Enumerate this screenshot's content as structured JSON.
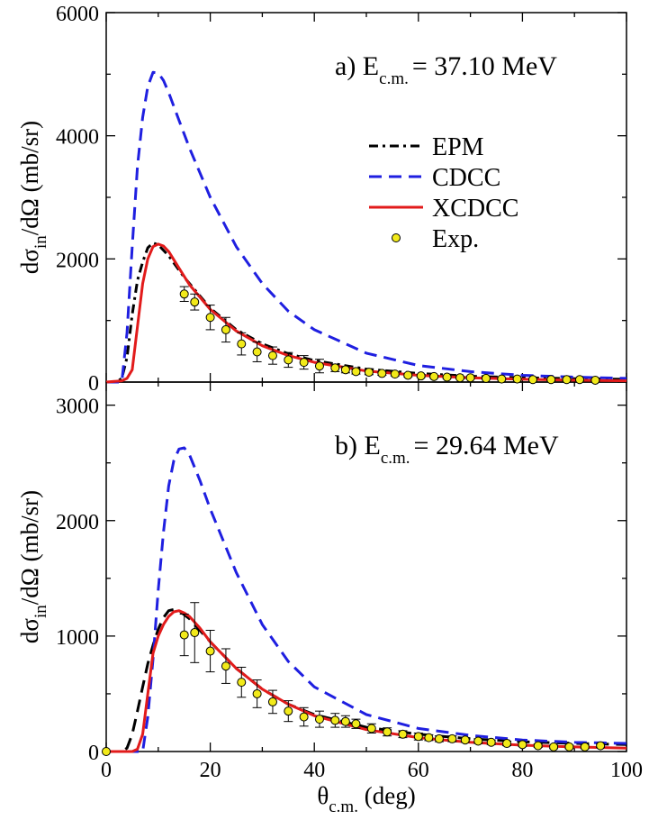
{
  "chart_data": [
    {
      "type": "line",
      "panel_label": "a) E",
      "energy_sub": "c.m.",
      "energy_value": "= 37.10 MeV",
      "ylabel_parts": [
        "dσ",
        "in",
        "/dΩ (mb/sr)"
      ],
      "xlim": [
        0,
        100
      ],
      "ylim": [
        0,
        6000
      ],
      "x_ticks": [
        0,
        20,
        40,
        60,
        80,
        100
      ],
      "y_ticks": [
        "0",
        "2000",
        "4000",
        "6000"
      ],
      "legend": {
        "placement": "center-right",
        "entries": [
          "EPM",
          "CDCC",
          "XCDCC",
          "Exp."
        ]
      },
      "series": [
        {
          "name": "EPM",
          "style": "dash-dot",
          "color": "#000000",
          "x": [
            0,
            2,
            3,
            4,
            5,
            6,
            7,
            8,
            9,
            10,
            12,
            15,
            20,
            25,
            30,
            35,
            40,
            50,
            60,
            70,
            80,
            90,
            100
          ],
          "y": [
            0,
            0,
            60,
            400,
            1100,
            1650,
            1950,
            2180,
            2260,
            2230,
            2050,
            1700,
            1200,
            850,
            620,
            460,
            350,
            210,
            140,
            95,
            70,
            55,
            45
          ]
        },
        {
          "name": "CDCC",
          "style": "dashed",
          "color": "#1f1fe0",
          "x": [
            0,
            3,
            4,
            5,
            6,
            7,
            8,
            9,
            10,
            11,
            12,
            14,
            16,
            20,
            25,
            30,
            35,
            40,
            50,
            60,
            70,
            80,
            90,
            100
          ],
          "y": [
            0,
            0,
            800,
            2200,
            3500,
            4300,
            4800,
            5030,
            5020,
            4900,
            4700,
            4250,
            3800,
            3000,
            2200,
            1600,
            1150,
            850,
            470,
            270,
            170,
            110,
            80,
            60
          ]
        },
        {
          "name": "XCDCC",
          "style": "solid",
          "color": "#e21b1b",
          "x": [
            0,
            3,
            4,
            5,
            6,
            7,
            8,
            9,
            10,
            11,
            12,
            14,
            16,
            20,
            25,
            30,
            35,
            40,
            50,
            60,
            70,
            80,
            90,
            100
          ],
          "y": [
            0,
            20,
            60,
            200,
            900,
            1600,
            2000,
            2200,
            2240,
            2210,
            2120,
            1850,
            1580,
            1180,
            830,
            590,
            430,
            320,
            180,
            110,
            70,
            45,
            30,
            20
          ]
        }
      ],
      "experimental": {
        "name": "Exp.",
        "color": "#f2ea1a",
        "x": [
          15.0,
          17.0,
          20.0,
          23.0,
          26.0,
          29.0,
          32.0,
          35.0,
          38.0,
          41.0,
          44.0,
          46.0,
          48.0,
          50.5,
          53.0,
          55.5,
          58.0,
          60.5,
          63.0,
          65.5,
          68.0,
          70.0,
          73.0,
          76.0,
          79.0,
          82.0,
          85.5,
          88.5,
          91.0,
          94.0
        ],
        "y": [
          1430,
          1300,
          1050,
          850,
          620,
          490,
          430,
          360,
          320,
          260,
          230,
          200,
          170,
          160,
          140,
          130,
          110,
          100,
          90,
          80,
          70,
          70,
          60,
          50,
          50,
          40,
          40,
          40,
          40,
          30
        ],
        "err": [
          120,
          130,
          200,
          200,
          180,
          160,
          140,
          120,
          110,
          110,
          60,
          50,
          40,
          40,
          30,
          30,
          25,
          25,
          20,
          20,
          20,
          20,
          15,
          15,
          15,
          15,
          15,
          15,
          15,
          15
        ]
      }
    },
    {
      "type": "line",
      "panel_label": "b) E",
      "energy_sub": "c.m.",
      "energy_value": "= 29.64 MeV",
      "ylabel_parts": [
        "dσ",
        "in",
        "/dΩ (mb/sr)"
      ],
      "xlabel_parts": [
        "θ",
        "c.m.",
        " (deg)"
      ],
      "xlim": [
        0,
        100
      ],
      "ylim": [
        0,
        3200
      ],
      "x_ticks": [
        0,
        20,
        40,
        60,
        80,
        100
      ],
      "x_tick_labels": [
        "0",
        "20",
        "40",
        "60",
        "80",
        "100"
      ],
      "y_ticks": [
        "0",
        "1000",
        "2000",
        "3000"
      ],
      "series": [
        {
          "name": "EPM",
          "style": "dashed",
          "color": "#000000",
          "x": [
            0,
            3,
            4,
            5,
            6,
            7,
            8,
            9,
            10,
            11,
            12,
            13,
            14,
            16,
            20,
            25,
            30,
            35,
            40,
            50,
            60,
            70,
            80,
            90,
            100
          ],
          "y": [
            0,
            0,
            30,
            150,
            350,
            560,
            760,
            920,
            1060,
            1160,
            1220,
            1230,
            1220,
            1150,
            950,
            720,
            540,
            410,
            320,
            210,
            150,
            110,
            85,
            70,
            60
          ]
        },
        {
          "name": "CDCC",
          "style": "dashed",
          "color": "#1f1fe0",
          "x": [
            0,
            7,
            8,
            9,
            10,
            11,
            12,
            13,
            14,
            15,
            16,
            18,
            20,
            25,
            30,
            35,
            40,
            50,
            60,
            70,
            80,
            90,
            100
          ],
          "y": [
            0,
            0,
            300,
            800,
            1400,
            1900,
            2300,
            2520,
            2620,
            2630,
            2570,
            2350,
            2100,
            1550,
            1100,
            780,
            560,
            320,
            200,
            140,
            100,
            80,
            70
          ]
        },
        {
          "name": "XCDCC",
          "style": "solid",
          "color": "#e21b1b",
          "x": [
            0,
            5,
            6,
            7,
            8,
            9,
            10,
            11,
            12,
            13,
            14,
            15,
            16,
            18,
            20,
            25,
            30,
            35,
            40,
            50,
            60,
            70,
            80,
            90,
            100
          ],
          "y": [
            0,
            0,
            20,
            150,
            500,
            850,
            1000,
            1100,
            1170,
            1210,
            1220,
            1200,
            1170,
            1070,
            950,
            720,
            540,
            410,
            310,
            190,
            120,
            80,
            55,
            40,
            30
          ]
        }
      ],
      "experimental": {
        "name": "Exp.",
        "color": "#f2ea1a",
        "x": [
          0.0,
          15.0,
          17.0,
          20.0,
          23.0,
          26.0,
          29.0,
          32.0,
          35.0,
          38.0,
          41.0,
          44.0,
          46.0,
          48.0,
          51.0,
          54.0,
          57.0,
          60.0,
          62.0,
          64.0,
          66.5,
          69.0,
          71.5,
          74.0,
          77.0,
          80.0,
          83.0,
          86.0,
          89.0,
          92.0,
          95.0
        ],
        "y": [
          0,
          1010,
          1030,
          870,
          740,
          600,
          500,
          430,
          350,
          300,
          280,
          270,
          260,
          240,
          200,
          170,
          150,
          130,
          120,
          110,
          110,
          100,
          90,
          80,
          70,
          60,
          50,
          40,
          40,
          40,
          50
        ],
        "err": [
          0,
          180,
          260,
          180,
          150,
          130,
          120,
          100,
          90,
          80,
          70,
          60,
          50,
          40,
          40,
          35,
          30,
          30,
          25,
          25,
          25,
          20,
          20,
          20,
          20,
          15,
          15,
          15,
          15,
          15,
          15
        ]
      }
    }
  ]
}
